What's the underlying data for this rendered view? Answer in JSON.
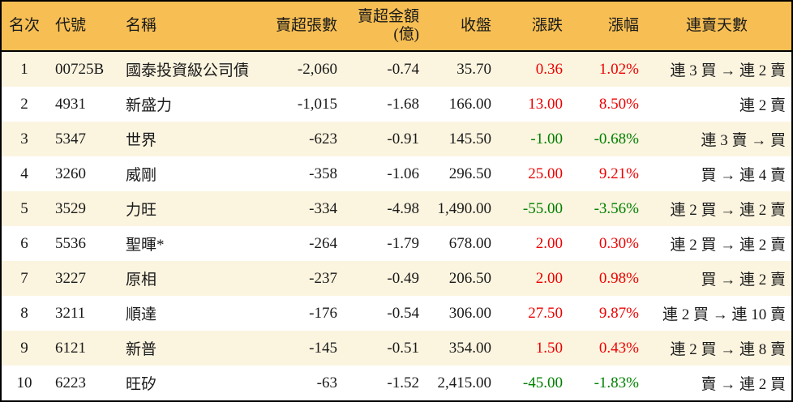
{
  "colors": {
    "header_bg": "#F6BE53",
    "row_stripe_bg": "#FBF4DF",
    "row_alt_bg": "#FFFFFF",
    "border": "#000000",
    "text": "#1A1A1A",
    "up_red": "#EE0000",
    "down_green": "#008000"
  },
  "chart_data": {
    "type": "table",
    "title": "",
    "header": {
      "rank": "名次",
      "code": "代號",
      "name": "名稱",
      "sell_volume": "賣超張數",
      "sell_amount_line1": "賣超金額",
      "sell_amount_line2": "(億)",
      "close": "收盤",
      "change": "漲跌",
      "change_pct": "漲幅",
      "streak": "連賣天數"
    },
    "rows": [
      {
        "rank": "1",
        "code": "00725B",
        "name": "國泰投資級公司債",
        "sell_volume": "-2,060",
        "sell_amount": "-0.74",
        "close": "35.70",
        "change": "0.36",
        "change_pct": "1.02%",
        "streak": "連 3 買 → 連 2 賣",
        "direction": "up"
      },
      {
        "rank": "2",
        "code": "4931",
        "name": "新盛力",
        "sell_volume": "-1,015",
        "sell_amount": "-1.68",
        "close": "166.00",
        "change": "13.00",
        "change_pct": "8.50%",
        "streak": "連 2 賣",
        "direction": "up"
      },
      {
        "rank": "3",
        "code": "5347",
        "name": "世界",
        "sell_volume": "-623",
        "sell_amount": "-0.91",
        "close": "145.50",
        "change": "-1.00",
        "change_pct": "-0.68%",
        "streak": "連 3 賣 → 買",
        "direction": "down"
      },
      {
        "rank": "4",
        "code": "3260",
        "name": "威剛",
        "sell_volume": "-358",
        "sell_amount": "-1.06",
        "close": "296.50",
        "change": "25.00",
        "change_pct": "9.21%",
        "streak": "買 → 連 4 賣",
        "direction": "up"
      },
      {
        "rank": "5",
        "code": "3529",
        "name": "力旺",
        "sell_volume": "-334",
        "sell_amount": "-4.98",
        "close": "1,490.00",
        "change": "-55.00",
        "change_pct": "-3.56%",
        "streak": "連 2 買 → 連 2 賣",
        "direction": "down"
      },
      {
        "rank": "6",
        "code": "5536",
        "name": "聖暉*",
        "sell_volume": "-264",
        "sell_amount": "-1.79",
        "close": "678.00",
        "change": "2.00",
        "change_pct": "0.30%",
        "streak": "連 2 買 → 連 2 賣",
        "direction": "up"
      },
      {
        "rank": "7",
        "code": "3227",
        "name": "原相",
        "sell_volume": "-237",
        "sell_amount": "-0.49",
        "close": "206.50",
        "change": "2.00",
        "change_pct": "0.98%",
        "streak": "買 → 連 2 賣",
        "direction": "up"
      },
      {
        "rank": "8",
        "code": "3211",
        "name": "順達",
        "sell_volume": "-176",
        "sell_amount": "-0.54",
        "close": "306.00",
        "change": "27.50",
        "change_pct": "9.87%",
        "streak": "連 2 買 → 連 10 賣",
        "direction": "up"
      },
      {
        "rank": "9",
        "code": "6121",
        "name": "新普",
        "sell_volume": "-145",
        "sell_amount": "-0.51",
        "close": "354.00",
        "change": "1.50",
        "change_pct": "0.43%",
        "streak": "連 2 買 → 連 8 賣",
        "direction": "up"
      },
      {
        "rank": "10",
        "code": "6223",
        "name": "旺矽",
        "sell_volume": "-63",
        "sell_amount": "-1.52",
        "close": "2,415.00",
        "change": "-45.00",
        "change_pct": "-1.83%",
        "streak": "賣 → 連 2 買",
        "direction": "down"
      }
    ]
  }
}
